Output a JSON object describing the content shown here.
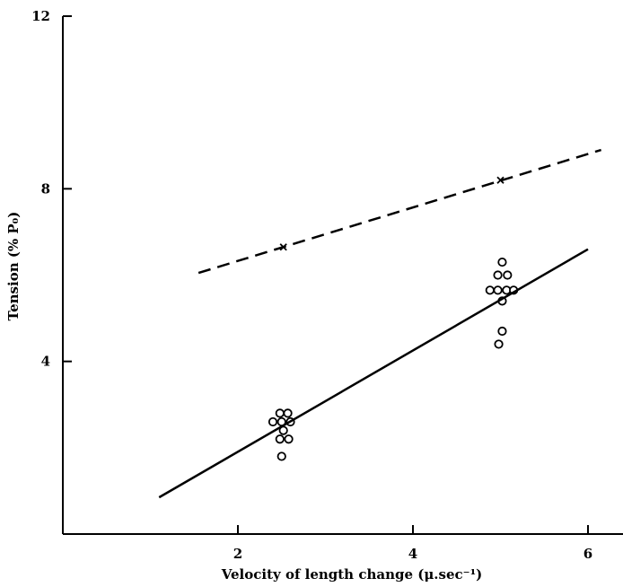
{
  "chart_data": {
    "type": "scatter",
    "title": "",
    "xlabel": "Velocity of length change (μ.sec⁻¹)",
    "ylabel": "Tension (% P₀)",
    "xlim": [
      0,
      6.4
    ],
    "ylim": [
      0,
      12
    ],
    "xticks": [
      {
        "value": 2,
        "label": "2"
      },
      {
        "value": 4,
        "label": "4"
      },
      {
        "value": 6,
        "label": "6"
      }
    ],
    "yticks": [
      {
        "value": 4,
        "label": "4"
      },
      {
        "value": 8,
        "label": "8"
      },
      {
        "value": 12,
        "label": "12"
      }
    ],
    "grid": false,
    "legend": "none",
    "series": [
      {
        "marker": "circle",
        "line": "none",
        "color": "#000000",
        "points": [
          {
            "x": 2.4,
            "y": 2.6
          },
          {
            "x": 2.48,
            "y": 2.8
          },
          {
            "x": 2.57,
            "y": 2.8
          },
          {
            "x": 2.5,
            "y": 2.6
          },
          {
            "x": 2.6,
            "y": 2.6
          },
          {
            "x": 2.52,
            "y": 2.4
          },
          {
            "x": 2.48,
            "y": 2.2
          },
          {
            "x": 2.58,
            "y": 2.2
          },
          {
            "x": 2.5,
            "y": 1.8
          },
          {
            "x": 5.02,
            "y": 6.3
          },
          {
            "x": 4.97,
            "y": 6.0
          },
          {
            "x": 5.08,
            "y": 6.0
          },
          {
            "x": 4.88,
            "y": 5.65
          },
          {
            "x": 4.97,
            "y": 5.65
          },
          {
            "x": 5.07,
            "y": 5.65
          },
          {
            "x": 5.15,
            "y": 5.65
          },
          {
            "x": 5.02,
            "y": 5.4
          },
          {
            "x": 5.02,
            "y": 4.7
          },
          {
            "x": 4.98,
            "y": 4.4
          }
        ]
      },
      {
        "marker": "cross",
        "line": "none",
        "color": "#000000",
        "points": [
          {
            "x": 2.52,
            "y": 6.65
          },
          {
            "x": 5.0,
            "y": 8.2
          }
        ]
      },
      {
        "marker": "none",
        "line": "solid",
        "color": "#000000",
        "points": [
          {
            "x": 1.1,
            "y": 0.85
          },
          {
            "x": 6.0,
            "y": 6.6
          }
        ]
      },
      {
        "marker": "none",
        "line": "dashed",
        "color": "#000000",
        "points": [
          {
            "x": 1.55,
            "y": 6.05
          },
          {
            "x": 6.15,
            "y": 8.9
          }
        ]
      }
    ]
  }
}
